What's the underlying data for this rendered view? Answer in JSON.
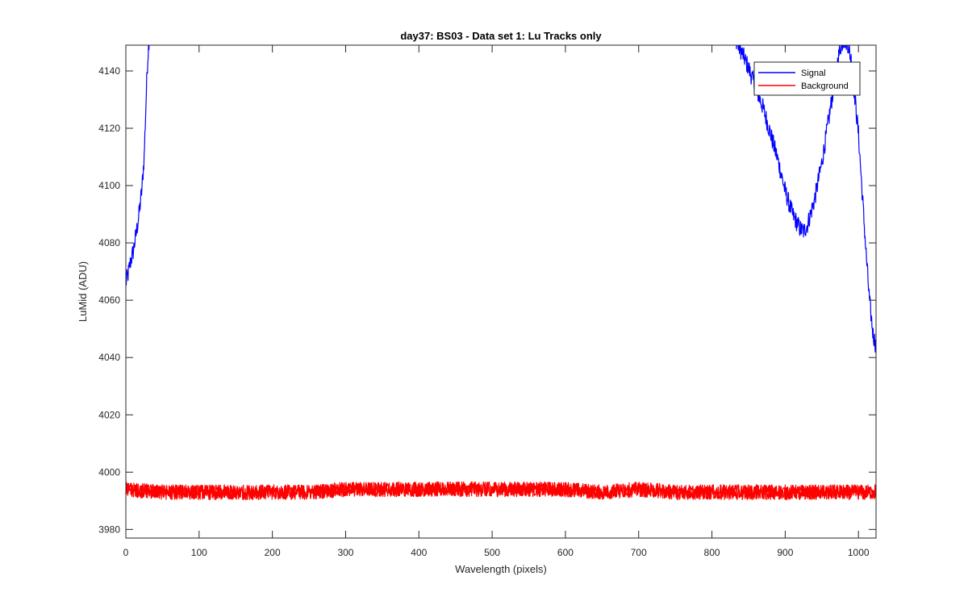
{
  "chart_data": {
    "type": "line",
    "title": "day37: BS03 - Data set 1: Lu Tracks only",
    "xlabel": "Wavelength (pixels)",
    "ylabel": "LuMid (ADU)",
    "xlim": [
      0,
      1024
    ],
    "ylim": [
      3977,
      4149
    ],
    "xticks": [
      0,
      100,
      200,
      300,
      400,
      500,
      600,
      700,
      800,
      900,
      1000
    ],
    "yticks": [
      3980,
      4000,
      4020,
      4040,
      4060,
      4080,
      4100,
      4120,
      4140
    ],
    "grid": false,
    "legend": "top-right",
    "series": [
      {
        "name": "Signal",
        "color": "#0000ff",
        "x": [
          0,
          3,
          6,
          10,
          14,
          18,
          22,
          25,
          27,
          29,
          31,
          33,
          830,
          835,
          840,
          850,
          860,
          870,
          880,
          890,
          900,
          910,
          920,
          925,
          930,
          940,
          950,
          960,
          970,
          975,
          980,
          985,
          990,
          1000,
          1005,
          1010,
          1015,
          1020,
          1024
        ],
        "y": [
          4066,
          4069,
          4073,
          4077,
          4083,
          4090,
          4099,
          4110,
          4125,
          4140,
          4149,
          4155,
          4155,
          4149,
          4147,
          4141,
          4134,
          4127,
          4118,
          4109,
          4098,
          4090,
          4085,
          4084,
          4086,
          4095,
          4108,
          4124,
          4141,
          4148,
          4151,
          4150,
          4144,
          4118,
          4098,
          4078,
          4060,
          4048,
          4044
        ]
      },
      {
        "name": "Background",
        "color": "#ff0000",
        "x": [
          0,
          50,
          100,
          150,
          200,
          250,
          300,
          350,
          400,
          450,
          500,
          550,
          600,
          650,
          700,
          750,
          800,
          850,
          900,
          950,
          1000,
          1024
        ],
        "y": [
          3994,
          3993,
          3993,
          3993,
          3993,
          3993,
          3994,
          3994,
          3994,
          3994,
          3994,
          3994,
          3994,
          3993,
          3994,
          3993,
          3993,
          3993,
          3993,
          3993,
          3993,
          3993
        ]
      }
    ]
  }
}
